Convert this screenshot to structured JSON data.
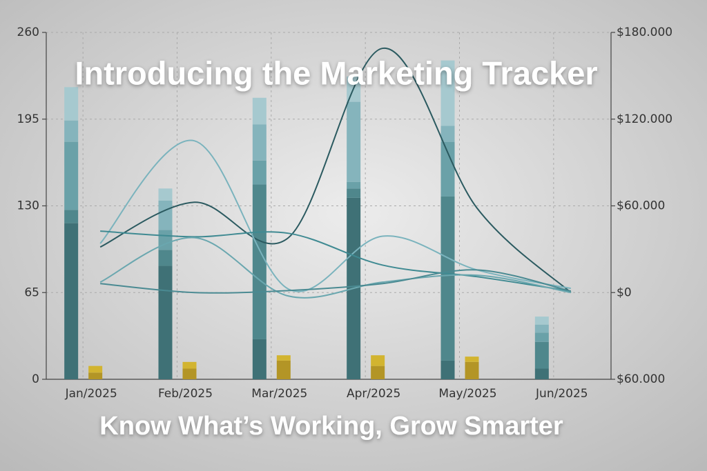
{
  "chart_data": {
    "type": "bar",
    "title": "Introducing the Marketing Tracker",
    "subtitle": "Know What’s Working, Grow Smarter",
    "categories": [
      "Jan/2025",
      "Feb/2025",
      "Mar/2025",
      "Apr/2025",
      "May/2025",
      "Jun/2025"
    ],
    "ylim": [
      0,
      260
    ],
    "yticks": [
      0,
      65,
      130,
      195,
      260
    ],
    "y2lim": [
      -60000,
      180000
    ],
    "y2ticks": [
      {
        "value": -60000,
        "label": "$60.000"
      },
      {
        "value": 0,
        "label": "$0"
      },
      {
        "value": 60000,
        "label": "$60.000"
      },
      {
        "value": 120000,
        "label": "$120.000"
      },
      {
        "value": 180000,
        "label": "$180.000"
      }
    ],
    "grid": true,
    "series": [
      {
        "type": "bar",
        "group": 0,
        "color": "#3f7176",
        "values": [
          117,
          85,
          30,
          136,
          14,
          8
        ]
      },
      {
        "type": "bar",
        "group": 0,
        "color": "#4f878c",
        "values": [
          10,
          12,
          116,
          7,
          123,
          20
        ]
      },
      {
        "type": "bar",
        "group": 0,
        "color": "#6aa1a8",
        "values": [
          51,
          15,
          18,
          5,
          41,
          7
        ]
      },
      {
        "type": "bar",
        "group": 0,
        "color": "#85b4bc",
        "values": [
          16,
          22,
          27,
          60,
          12,
          6
        ]
      },
      {
        "type": "bar",
        "group": 0,
        "color": "#a6c9cf",
        "values": [
          25,
          9,
          20,
          19,
          49,
          6
        ]
      },
      {
        "type": "bar",
        "group": 1,
        "color": "#b39526",
        "values": [
          5,
          8,
          14,
          10,
          13,
          null
        ]
      },
      {
        "type": "bar",
        "group": 1,
        "color": "#d2b430",
        "values": [
          5,
          5,
          4,
          8,
          4,
          null
        ]
      },
      {
        "type": "line",
        "axis": "y2",
        "color": "#2b5a60",
        "values": [
          31500,
          62500,
          38000,
          169000,
          58700,
          0
        ]
      },
      {
        "type": "line",
        "axis": "y2",
        "color": "#7ab3bd",
        "values": [
          34000,
          105000,
          2400,
          39000,
          15700,
          2900
        ]
      },
      {
        "type": "line",
        "axis": "y2",
        "color": "#3f8a92",
        "values": [
          42500,
          38600,
          41000,
          19000,
          11000,
          1000
        ]
      },
      {
        "type": "line",
        "axis": "y2",
        "color": "#6aa7af",
        "values": [
          7200,
          38000,
          -2400,
          7200,
          12000,
          0
        ]
      },
      {
        "type": "line",
        "axis": "y2",
        "color": "#4a8a92",
        "values": [
          6200,
          0,
          1400,
          6200,
          15700,
          1000
        ]
      }
    ]
  }
}
